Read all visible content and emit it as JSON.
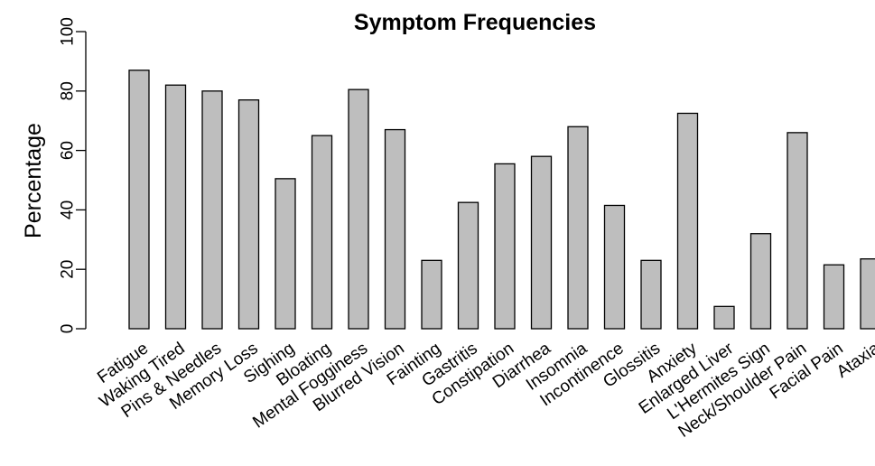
{
  "chart_data": {
    "type": "bar",
    "title": "Symptom Frequencies",
    "xlabel": "",
    "ylabel": "Percentage",
    "ylim": [
      0,
      100
    ],
    "yticks": [
      0,
      20,
      40,
      60,
      80,
      100
    ],
    "grid": false,
    "bar_color": "#bebebe",
    "categories": [
      "Fatigue",
      "Waking Tired",
      "Pins & Needles",
      "Memory Loss",
      "Sighing",
      "Bloating",
      "Mental Fogginess",
      "Blurred Vision",
      "Fainting",
      "Gastritis",
      "Constipation",
      "Diarrhea",
      "Insomnia",
      "Incontinence",
      "Glossitis",
      "Anxiety",
      "Enlarged Liver",
      "L'Hermites Sign",
      "Neck/Shoulder Pain",
      "Facial Pain",
      "Ataxia"
    ],
    "values": [
      87,
      82,
      80,
      77,
      50.5,
      65,
      80.5,
      67,
      23,
      42.5,
      55.5,
      58,
      68,
      41.5,
      23,
      72.5,
      7.5,
      32,
      66,
      21.5,
      23.5
    ]
  }
}
